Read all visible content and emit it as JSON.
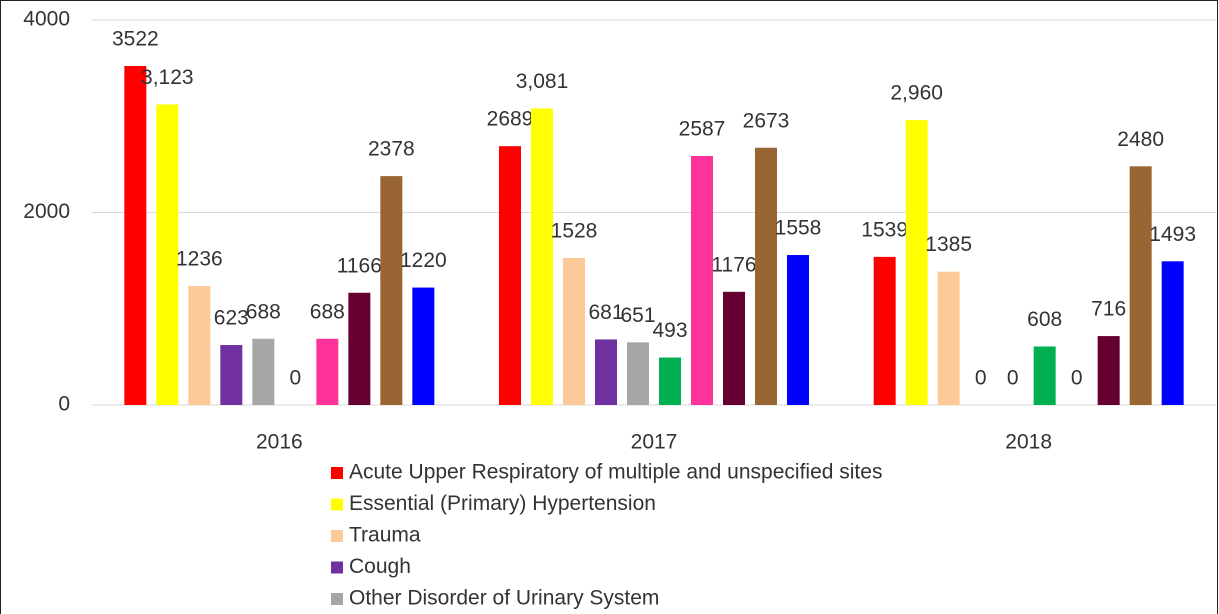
{
  "chart_data": {
    "type": "bar",
    "categories": [
      "2016",
      "2017",
      "2018"
    ],
    "series": [
      {
        "name": "Acute Upper Respiratory of multiple and unspecified sites",
        "color": "#ff0000",
        "values": [
          3522,
          2689,
          1539
        ]
      },
      {
        "name": "Essential (Primary) Hypertension",
        "color": "#ffff00",
        "values": [
          3123,
          3081,
          2960
        ],
        "value_labels": [
          "3,123",
          "3,081",
          "2,960"
        ]
      },
      {
        "name": "Trauma",
        "color": "#fcc998",
        "values": [
          1236,
          1528,
          1385
        ]
      },
      {
        "name": "Cough",
        "color": "#7030a0",
        "values": [
          623,
          681,
          0
        ]
      },
      {
        "name": "Other Disorder of Urinary System",
        "color": "#a6a6a6",
        "values": [
          688,
          651,
          0
        ]
      },
      {
        "color": "#00b050",
        "values": [
          0,
          493,
          608
        ]
      },
      {
        "color": "#ff3399",
        "values": [
          688,
          2587,
          0
        ]
      },
      {
        "color": "#660033",
        "values": [
          1166,
          1176,
          716
        ]
      },
      {
        "color": "#996633",
        "values": [
          2378,
          2673,
          2480
        ]
      },
      {
        "color": "#0000ff",
        "values": [
          1220,
          1558,
          1493
        ]
      }
    ],
    "ylim": [
      0,
      4000
    ],
    "yticks": [
      0,
      2000,
      4000
    ],
    "grid": true
  }
}
